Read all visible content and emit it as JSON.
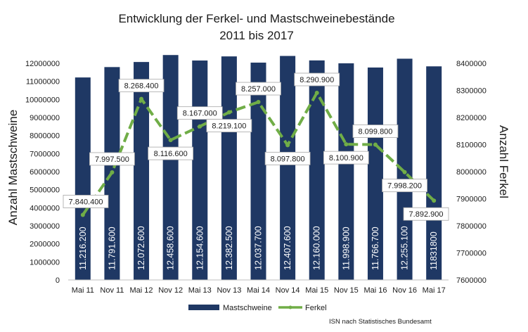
{
  "chart_data": {
    "type": "bar",
    "title": "Entwicklung der Ferkel- und Mastschweinebestände",
    "subtitle": "2011 bis 2017",
    "categories": [
      "Mai 11",
      "Nov 11",
      "Mai 12",
      "Nov 12",
      "Mai 13",
      "Nov 13",
      "Mai 14",
      "Nov 14",
      "Mai 15",
      "Nov 15",
      "Mai 16",
      "Nov 16",
      "Mai 17"
    ],
    "series": [
      {
        "name": "Mastschweine",
        "type": "bar",
        "axis": "left",
        "color": "#1f3864",
        "values": [
          11216200,
          11791600,
          12072600,
          12458600,
          12154600,
          12382500,
          12037700,
          12407600,
          12160000,
          11998900,
          11766700,
          12255100,
          11831800
        ],
        "labels": [
          "11.216.200",
          "11.791.600",
          "12.072.600",
          "12.458.600",
          "12.154.600",
          "12.382.500",
          "12.037.700",
          "12.407.600",
          "12.160.000",
          "11.998.900",
          "11.766.700",
          "12.255.100",
          "11831800"
        ]
      },
      {
        "name": "Ferkel",
        "type": "line",
        "axis": "right",
        "color": "#70ad47",
        "values": [
          7840400,
          7997500,
          8268400,
          8116600,
          8167000,
          8219100,
          8257000,
          8097800,
          8290900,
          8100900,
          8099800,
          7998200,
          7892900
        ],
        "labels": [
          "7.840.400",
          "7.997.500",
          "8.268.400",
          "8.116.600",
          "8.167.000",
          "8.219.100",
          "8.257.000",
          "8.097.800",
          "8.290.900",
          "8.100.900",
          "8.099.800",
          "7.998.200",
          "7.892.900"
        ]
      }
    ],
    "ylabel": "Anzahl Mastschweine",
    "ylim": [
      0,
      12000000
    ],
    "yticks": [
      "0",
      "1000000",
      "2000000",
      "3000000",
      "4000000",
      "5000000",
      "6000000",
      "7000000",
      "8000000",
      "9000000",
      "10000000",
      "11000000",
      "12000000"
    ],
    "y2label": "Anzahl Ferkel",
    "y2lim": [
      7600000,
      8400000
    ],
    "y2ticks": [
      "7600000",
      "7700000",
      "7800000",
      "7900000",
      "8000000",
      "8100000",
      "8200000",
      "8300000",
      "8400000"
    ],
    "grid": false,
    "legend": "bottom",
    "source": "ISN nach Statistisches Bundesamt"
  }
}
